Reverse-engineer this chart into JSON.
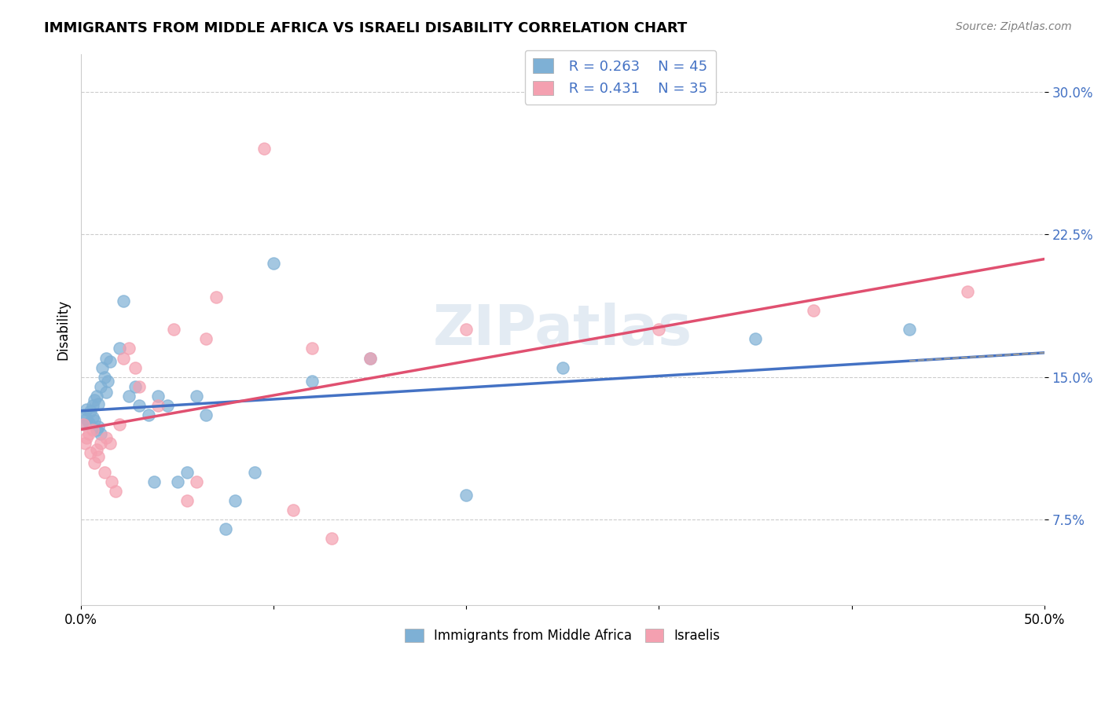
{
  "title": "IMMIGRANTS FROM MIDDLE AFRICA VS ISRAELI DISABILITY CORRELATION CHART",
  "source": "Source: ZipAtlas.com",
  "ylabel": "Disability",
  "y_ticks": [
    0.075,
    0.15,
    0.225,
    0.3
  ],
  "y_tick_labels": [
    "7.5%",
    "15.0%",
    "22.5%",
    "30.0%"
  ],
  "x_ticks": [
    0.0,
    0.1,
    0.2,
    0.3,
    0.4,
    0.5
  ],
  "x_tick_labels": [
    "0.0%",
    "",
    "",
    "",
    "",
    "50.0%"
  ],
  "xlim": [
    0.0,
    0.5
  ],
  "ylim": [
    0.03,
    0.32
  ],
  "blue_label": "Immigrants from Middle Africa",
  "pink_label": "Israelis",
  "blue_R": "R = 0.263",
  "blue_N": "N = 45",
  "pink_R": "R = 0.431",
  "pink_N": "N = 35",
  "blue_color": "#7EB0D5",
  "pink_color": "#F4A0B0",
  "blue_line_color": "#4472C4",
  "pink_line_color": "#E05070",
  "watermark": "ZIPatlas",
  "blue_points_x": [
    0.001,
    0.002,
    0.003,
    0.003,
    0.004,
    0.005,
    0.006,
    0.006,
    0.007,
    0.007,
    0.008,
    0.008,
    0.009,
    0.009,
    0.01,
    0.01,
    0.011,
    0.012,
    0.013,
    0.013,
    0.014,
    0.015,
    0.02,
    0.022,
    0.025,
    0.028,
    0.03,
    0.035,
    0.038,
    0.04,
    0.045,
    0.05,
    0.055,
    0.06,
    0.065,
    0.075,
    0.08,
    0.09,
    0.1,
    0.12,
    0.15,
    0.2,
    0.25,
    0.35,
    0.43
  ],
  "blue_points_y": [
    0.13,
    0.125,
    0.128,
    0.133,
    0.126,
    0.132,
    0.129,
    0.135,
    0.127,
    0.138,
    0.122,
    0.14,
    0.124,
    0.136,
    0.12,
    0.145,
    0.155,
    0.15,
    0.16,
    0.142,
    0.148,
    0.158,
    0.165,
    0.19,
    0.14,
    0.145,
    0.135,
    0.13,
    0.095,
    0.14,
    0.135,
    0.095,
    0.1,
    0.14,
    0.13,
    0.07,
    0.085,
    0.1,
    0.21,
    0.148,
    0.16,
    0.088,
    0.155,
    0.17,
    0.175
  ],
  "pink_points_x": [
    0.001,
    0.002,
    0.003,
    0.004,
    0.005,
    0.006,
    0.007,
    0.008,
    0.009,
    0.01,
    0.012,
    0.013,
    0.015,
    0.016,
    0.018,
    0.02,
    0.022,
    0.025,
    0.028,
    0.03,
    0.04,
    0.048,
    0.055,
    0.06,
    0.065,
    0.07,
    0.095,
    0.11,
    0.12,
    0.13,
    0.15,
    0.2,
    0.3,
    0.38,
    0.46
  ],
  "pink_points_y": [
    0.125,
    0.115,
    0.118,
    0.12,
    0.11,
    0.122,
    0.105,
    0.112,
    0.108,
    0.115,
    0.1,
    0.118,
    0.115,
    0.095,
    0.09,
    0.125,
    0.16,
    0.165,
    0.155,
    0.145,
    0.135,
    0.175,
    0.085,
    0.095,
    0.17,
    0.192,
    0.27,
    0.08,
    0.165,
    0.065,
    0.16,
    0.175,
    0.175,
    0.185,
    0.195
  ]
}
